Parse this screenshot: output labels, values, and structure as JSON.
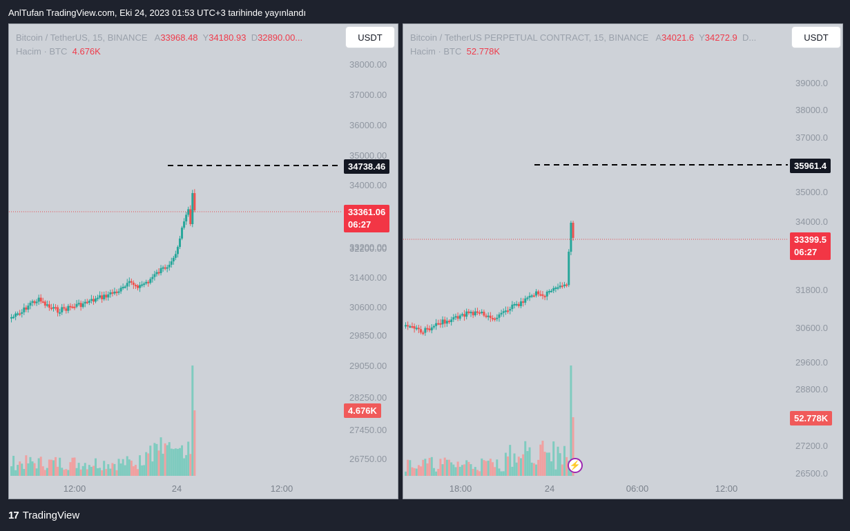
{
  "header": {
    "published": "AnlTufan TradingView.com, Eki 24, 2023 01:53 UTC+3 tarihinde yayınlandı"
  },
  "footer": {
    "logo": "17",
    "brand": "TradingView"
  },
  "colors": {
    "up": "#26a69a",
    "down": "#ef5350",
    "bg": "#ced2d8",
    "accent_red": "#f23645"
  },
  "left": {
    "symbol": "Bitcoin / TetherUS, 15, BINANCE",
    "o_label": "A",
    "o": "33968.48",
    "h_label": "Y",
    "h": "34180.93",
    "l_label": "D",
    "l": "32890.00...",
    "vol_label": "Hacim · BTC",
    "vol": "4.676K",
    "currency": "USDT",
    "yticks": [
      "38000.00",
      "37000.00",
      "36000.00",
      "35000.00",
      "34000.00",
      "33200.00",
      "32200.00",
      "31400.00",
      "30600.00",
      "29850.00",
      "29050.00",
      "28250.00",
      "27450.00",
      "26750.00"
    ],
    "xticks": [
      "12:00",
      "24",
      "12:00"
    ],
    "high_tag": "34738.46",
    "price_tag": "33361.06",
    "timer": "06:27",
    "vol_tag": "4.676K"
  },
  "right": {
    "symbol": "Bitcoin / TetherUS PERPETUAL CONTRACT, 15, BINANCE",
    "o_label": "A",
    "o": "34021.6",
    "h_label": "Y",
    "h": "34272.9",
    "l_label": "D...",
    "vol_label": "Hacim · BTC",
    "vol": "52.778K",
    "currency": "USDT",
    "yticks": [
      "39000.0",
      "38000.0",
      "37000.0",
      "35000.0",
      "34000.0",
      "31800.0",
      "30600.0",
      "29600.0",
      "28800.0",
      "27200.0",
      "26500.0"
    ],
    "xticks": [
      "18:00",
      "24",
      "06:00",
      "12:00"
    ],
    "high_tag": "35961.4",
    "price_tag": "33399.5",
    "timer": "06:27",
    "vol_tag": "52.778K"
  }
}
